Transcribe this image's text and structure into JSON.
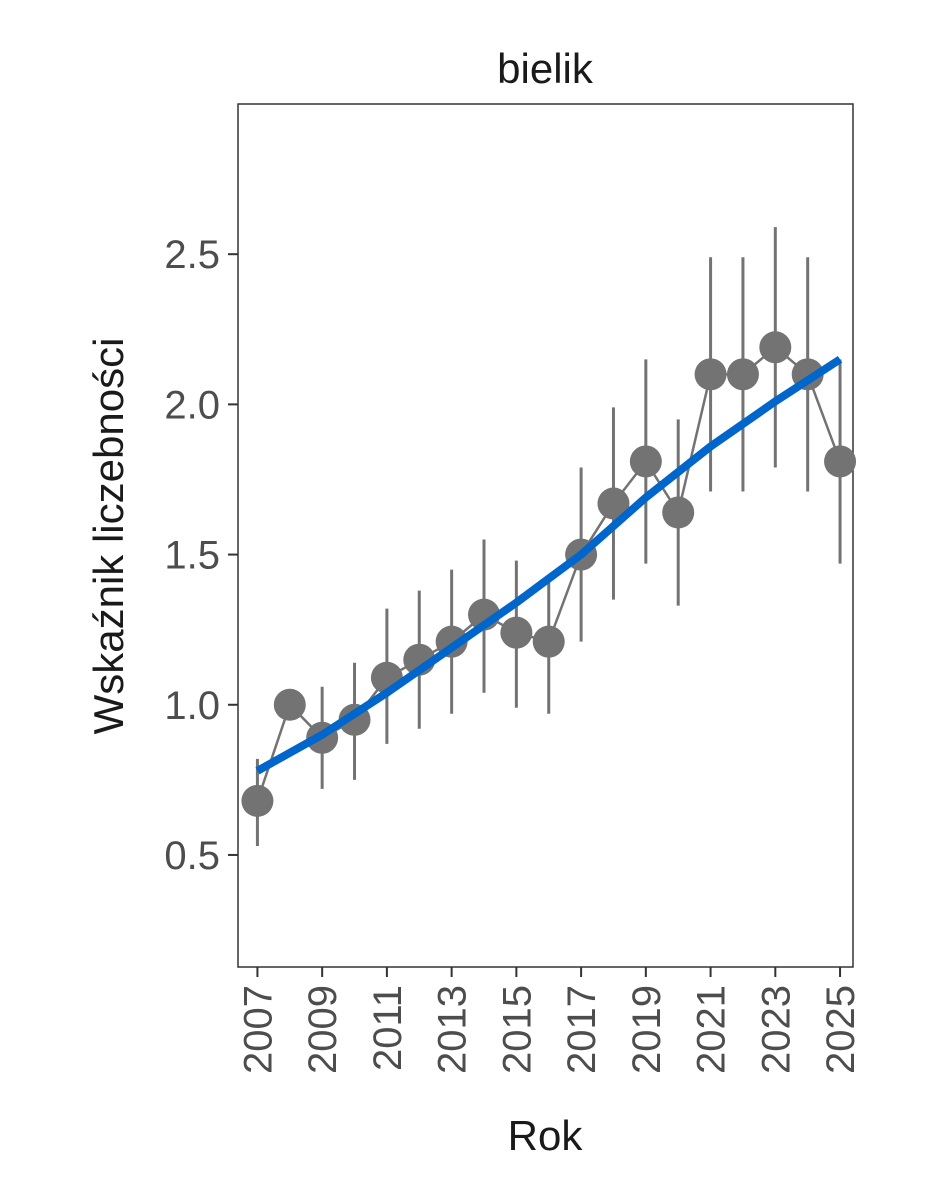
{
  "chart_data": {
    "type": "line",
    "title": "bielik",
    "xlabel": "Rok",
    "ylabel": "Wskaźnik liczebności",
    "xlim": [
      2006.4,
      2025.4
    ],
    "ylim": [
      0.127,
      3.0
    ],
    "yticks": [
      0.5,
      1.0,
      1.5,
      2.0,
      2.5
    ],
    "ytick_labels": [
      "0.5",
      "1.0",
      "1.5",
      "2.0",
      "2.5"
    ],
    "xticks": [
      2007,
      2009,
      2011,
      2013,
      2015,
      2017,
      2019,
      2021,
      2023,
      2025
    ],
    "xtick_labels": [
      "2007",
      "2009",
      "2011",
      "2013",
      "2015",
      "2017",
      "2019",
      "2021",
      "2023",
      "2025"
    ],
    "grid": false,
    "series": [
      {
        "name": "index",
        "color": "#737373",
        "x": [
          2007,
          2008,
          2009,
          2010,
          2011,
          2012,
          2013,
          2014,
          2015,
          2016,
          2017,
          2018,
          2019,
          2020,
          2021,
          2022,
          2023,
          2024,
          2025
        ],
        "y": [
          0.68,
          1.0,
          0.89,
          0.95,
          1.09,
          1.15,
          1.21,
          1.3,
          1.24,
          1.21,
          1.5,
          1.67,
          1.81,
          1.64,
          2.1,
          2.1,
          2.19,
          2.1,
          1.81
        ],
        "lower": [
          0.53,
          null,
          0.72,
          0.75,
          0.87,
          0.92,
          0.97,
          1.04,
          0.99,
          0.97,
          1.21,
          1.35,
          1.47,
          1.33,
          1.71,
          1.71,
          1.79,
          1.71,
          1.47
        ],
        "upper": [
          0.82,
          null,
          1.06,
          1.14,
          1.32,
          1.38,
          1.45,
          1.55,
          1.48,
          1.42,
          1.79,
          1.99,
          2.15,
          1.95,
          2.49,
          2.49,
          2.59,
          2.49,
          2.15
        ]
      },
      {
        "name": "trend",
        "color": "#0066CC",
        "x": [
          2007,
          2009,
          2011,
          2013,
          2015,
          2017,
          2019,
          2021,
          2023,
          2025
        ],
        "y": [
          0.78,
          0.9,
          1.04,
          1.19,
          1.34,
          1.5,
          1.69,
          1.86,
          2.01,
          2.15
        ]
      }
    ]
  }
}
